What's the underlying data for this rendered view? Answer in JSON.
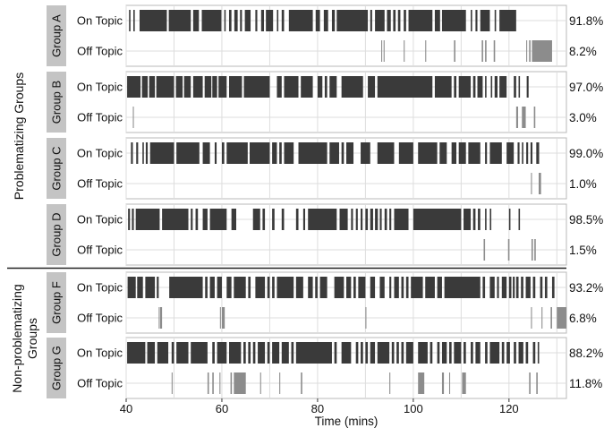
{
  "chart_data": {
    "type": "timeline",
    "xlabel": "Time (mins)",
    "xlim": [
      40,
      132
    ],
    "xticks": [
      40,
      60,
      80,
      100,
      120
    ],
    "row_labels": {
      "on": "On Topic",
      "off": "Off Topic"
    },
    "colors": {
      "on": "#3a3a3a",
      "off": "#8c8c8c",
      "grid": "#dddddd",
      "panel_border": "#b8b8b8",
      "group_tab": "#c4c4c4"
    },
    "sections": [
      {
        "label_lines": [
          "Problematizing Groups"
        ],
        "groups": [
          "A",
          "B",
          "C",
          "D"
        ]
      },
      {
        "label_lines": [
          "Non-problematizing",
          "Groups"
        ],
        "groups": [
          "F",
          "G"
        ]
      }
    ],
    "groups": [
      {
        "name": "Group A",
        "on_pct": "91.8%",
        "off_pct": "8.2%",
        "on": [
          [
            40.6,
            40.9
          ],
          [
            41.5,
            41.8
          ],
          [
            42.8,
            48.5
          ],
          [
            48.9,
            53.5
          ],
          [
            54,
            55.2
          ],
          [
            55.8,
            59.9
          ],
          [
            60.5,
            60.8
          ],
          [
            61.5,
            62
          ],
          [
            62.6,
            63.3
          ],
          [
            63.8,
            64.2
          ],
          [
            64.8,
            66
          ],
          [
            67,
            67.4
          ],
          [
            68.2,
            68.8
          ],
          [
            69.2,
            70.7
          ],
          [
            71.5,
            71.8
          ],
          [
            72.5,
            73
          ],
          [
            74,
            79
          ],
          [
            79.6,
            80.5
          ],
          [
            81.3,
            82.2
          ],
          [
            83,
            83.6
          ],
          [
            84,
            90.5
          ],
          [
            91,
            91.4
          ],
          [
            92,
            94
          ],
          [
            94.5,
            95.3
          ],
          [
            95.8,
            96.3
          ],
          [
            96.8,
            97.3
          ],
          [
            98,
            98.5
          ],
          [
            99,
            104
          ],
          [
            104.5,
            105.6
          ],
          [
            106,
            111
          ],
          [
            112,
            112.3
          ],
          [
            113,
            113.4
          ],
          [
            114,
            116
          ],
          [
            117,
            117.3
          ],
          [
            118,
            121.5
          ]
        ],
        "off": [
          [
            93.3,
            93.5
          ],
          [
            93.8,
            94
          ],
          [
            98,
            98.2
          ],
          [
            102.5,
            102.7
          ],
          [
            108.5,
            108.8
          ],
          [
            114.3,
            114.6
          ],
          [
            115,
            115.3
          ],
          [
            116.8,
            117.1
          ],
          [
            123.6,
            123.8
          ],
          [
            124.2,
            124.5
          ],
          [
            124.8,
            129
          ]
        ]
      },
      {
        "name": "Group B",
        "on_pct": "97.0%",
        "off_pct": "3.0%",
        "on": [
          [
            40.2,
            43
          ],
          [
            43.3,
            44.5
          ],
          [
            44.8,
            46
          ],
          [
            46.3,
            50
          ],
          [
            50.4,
            51.8
          ],
          [
            52.1,
            53.5
          ],
          [
            54,
            56
          ],
          [
            56.4,
            57.8
          ],
          [
            58,
            59
          ],
          [
            59.3,
            61
          ],
          [
            61.5,
            64.2
          ],
          [
            64.6,
            70
          ],
          [
            71.5,
            72.5
          ],
          [
            73,
            76
          ],
          [
            76.5,
            79
          ],
          [
            80,
            81
          ],
          [
            81.5,
            82
          ],
          [
            82.5,
            84
          ],
          [
            85,
            89.5
          ],
          [
            90.5,
            92
          ],
          [
            92.5,
            104
          ],
          [
            104.5,
            108
          ],
          [
            108.5,
            109
          ],
          [
            109.5,
            112
          ],
          [
            112.5,
            113
          ],
          [
            113.4,
            114.5
          ],
          [
            115,
            115.3
          ],
          [
            116.2,
            116.5
          ],
          [
            117,
            117.6
          ],
          [
            118,
            119.5
          ],
          [
            121,
            121.5
          ],
          [
            122,
            122.3
          ],
          [
            123.7,
            124.1
          ]
        ],
        "off": [
          [
            41.4,
            41.6
          ],
          [
            121.5,
            121.9
          ],
          [
            122.7,
            123.5
          ],
          [
            125.2,
            125.5
          ]
        ]
      },
      {
        "name": "Group C",
        "on_pct": "99.0%",
        "off_pct": "1.0%",
        "on": [
          [
            41,
            41.4
          ],
          [
            42.1,
            42.5
          ],
          [
            43.4,
            43.7
          ],
          [
            44.1,
            44.5
          ],
          [
            45,
            50
          ],
          [
            50.5,
            55.3
          ],
          [
            56,
            57.5
          ],
          [
            58.5,
            58.9
          ],
          [
            60,
            60.5
          ],
          [
            61,
            65.4
          ],
          [
            65.8,
            70
          ],
          [
            70.5,
            71.5
          ],
          [
            72,
            72.5
          ],
          [
            73,
            75
          ],
          [
            76,
            82
          ],
          [
            82.5,
            84.5
          ],
          [
            85,
            85.5
          ],
          [
            86,
            87.5
          ],
          [
            89,
            91
          ],
          [
            92.5,
            96
          ],
          [
            97,
            100
          ],
          [
            101,
            105
          ],
          [
            105.5,
            107
          ],
          [
            108,
            109
          ],
          [
            109.5,
            111
          ],
          [
            111.5,
            114
          ],
          [
            115,
            115.4
          ],
          [
            116,
            118.5
          ],
          [
            119.5,
            121
          ],
          [
            121.8,
            122.2
          ],
          [
            122.7,
            123
          ],
          [
            123.6,
            124
          ],
          [
            124.5,
            124.9
          ],
          [
            125.7,
            126.3
          ]
        ],
        "off": [
          [
            124.6,
            124.8
          ],
          [
            126.2,
            126.7
          ]
        ]
      },
      {
        "name": "Group D",
        "on_pct": "98.5%",
        "off_pct": "1.5%",
        "on": [
          [
            40.4,
            40.8
          ],
          [
            41.2,
            41.6
          ],
          [
            42,
            47
          ],
          [
            47.5,
            53
          ],
          [
            53.5,
            53.9
          ],
          [
            54.5,
            55
          ],
          [
            56,
            57
          ],
          [
            57.5,
            61
          ],
          [
            62,
            63
          ],
          [
            66.5,
            68
          ],
          [
            68.5,
            69
          ],
          [
            70.5,
            71
          ],
          [
            72.5,
            73
          ],
          [
            75.5,
            76
          ],
          [
            77,
            77.4
          ],
          [
            78,
            84
          ],
          [
            84.6,
            86.3
          ],
          [
            87,
            87.4
          ],
          [
            88,
            88.4
          ],
          [
            89,
            89.4
          ],
          [
            90,
            90.5
          ],
          [
            91,
            91.6
          ],
          [
            92,
            92.6
          ],
          [
            93,
            93.4
          ],
          [
            94,
            94.5
          ],
          [
            95,
            95.4
          ],
          [
            96,
            99
          ],
          [
            100,
            110
          ],
          [
            110.5,
            112
          ],
          [
            112.5,
            113
          ],
          [
            113.5,
            114
          ],
          [
            115,
            115.3
          ],
          [
            116,
            116.3
          ],
          [
            120,
            120.3
          ],
          [
            122,
            122.3
          ]
        ],
        "off": [
          [
            114.7,
            115
          ],
          [
            119.8,
            120.1
          ],
          [
            124.7,
            125
          ],
          [
            125.3,
            125.6
          ]
        ]
      },
      {
        "name": "Group F",
        "on_pct": "93.2%",
        "off_pct": "6.8%",
        "on": [
          [
            40.3,
            42
          ],
          [
            42.3,
            43.5
          ],
          [
            44,
            46
          ],
          [
            46.4,
            46.8
          ],
          [
            49,
            56
          ],
          [
            56.5,
            57
          ],
          [
            57.5,
            58.5
          ],
          [
            59,
            60
          ],
          [
            61,
            62
          ],
          [
            62.5,
            65
          ],
          [
            65.5,
            66
          ],
          [
            67,
            69
          ],
          [
            69.5,
            70
          ],
          [
            70.5,
            71
          ],
          [
            71.5,
            75
          ],
          [
            75.5,
            77
          ],
          [
            78,
            79
          ],
          [
            79.5,
            80
          ],
          [
            80.5,
            82
          ],
          [
            83.5,
            85.5
          ],
          [
            86,
            87
          ],
          [
            87.5,
            88
          ],
          [
            88.5,
            90
          ],
          [
            91,
            92
          ],
          [
            93,
            94
          ],
          [
            95,
            95.4
          ],
          [
            96,
            97
          ],
          [
            97.5,
            98
          ],
          [
            98.5,
            99
          ],
          [
            99.5,
            102
          ],
          [
            102.5,
            104.5
          ],
          [
            105,
            106
          ],
          [
            106.5,
            114
          ],
          [
            114.5,
            115
          ],
          [
            116,
            117
          ],
          [
            117.5,
            117.9
          ],
          [
            118.5,
            119.5
          ],
          [
            120,
            120.5
          ],
          [
            120.8,
            121.2
          ],
          [
            121.5,
            122
          ],
          [
            122.5,
            123
          ],
          [
            123.5,
            124.5
          ],
          [
            125,
            125.5
          ],
          [
            126.5,
            127
          ],
          [
            127.5,
            128
          ],
          [
            129,
            129.5
          ]
        ],
        "off": [
          [
            46.8,
            47
          ],
          [
            47.1,
            47.5
          ],
          [
            59.6,
            59.8
          ],
          [
            60,
            60.6
          ],
          [
            90,
            90.2
          ],
          [
            124.6,
            124.8
          ],
          [
            126.8,
            127
          ],
          [
            128.7,
            129
          ],
          [
            130,
            132
          ]
        ]
      },
      {
        "name": "Group G",
        "on_pct": "88.2%",
        "off_pct": "11.8%",
        "on": [
          [
            40.2,
            44
          ],
          [
            44.4,
            46
          ],
          [
            46.5,
            48.8
          ],
          [
            49.5,
            50
          ],
          [
            50.5,
            53
          ],
          [
            53.5,
            57
          ],
          [
            58,
            58.5
          ],
          [
            59,
            61
          ],
          [
            61.5,
            64
          ],
          [
            64.5,
            65
          ],
          [
            65.5,
            66
          ],
          [
            66.5,
            67
          ],
          [
            67.5,
            69
          ],
          [
            69.5,
            70
          ],
          [
            70.5,
            72
          ],
          [
            72.5,
            74
          ],
          [
            74.5,
            75
          ],
          [
            75.5,
            83
          ],
          [
            83.5,
            84
          ],
          [
            85,
            87
          ],
          [
            88,
            88.5
          ],
          [
            89,
            89.5
          ],
          [
            90,
            90.5
          ],
          [
            91,
            92
          ],
          [
            92.5,
            95
          ],
          [
            95.5,
            96
          ],
          [
            96.5,
            97
          ],
          [
            97.5,
            98
          ],
          [
            98.5,
            100
          ],
          [
            101,
            103
          ],
          [
            103.5,
            104
          ],
          [
            105,
            105.5
          ],
          [
            106,
            107
          ],
          [
            107.5,
            108
          ],
          [
            108.5,
            110
          ],
          [
            110.5,
            111
          ],
          [
            112,
            112.5
          ],
          [
            113,
            114
          ],
          [
            115,
            115.5
          ],
          [
            116,
            118
          ],
          [
            118.5,
            119
          ],
          [
            119.5,
            120.2
          ],
          [
            121,
            121.5
          ],
          [
            122,
            123
          ],
          [
            123.5,
            124
          ],
          [
            125,
            125.5
          ],
          [
            126,
            126.3
          ]
        ],
        "off": [
          [
            49.5,
            49.7
          ],
          [
            57,
            57.3
          ],
          [
            58,
            58.3
          ],
          [
            59.5,
            59.7
          ],
          [
            61.8,
            62.1
          ],
          [
            62.5,
            65
          ],
          [
            68,
            68.2
          ],
          [
            72,
            72.2
          ],
          [
            76.5,
            76.8
          ],
          [
            95,
            95.2
          ],
          [
            101,
            102.3
          ],
          [
            106,
            106.4
          ],
          [
            107.5,
            107.7
          ],
          [
            110.2,
            111
          ],
          [
            124.2,
            124.5
          ],
          [
            125.7,
            126
          ]
        ]
      }
    ]
  }
}
